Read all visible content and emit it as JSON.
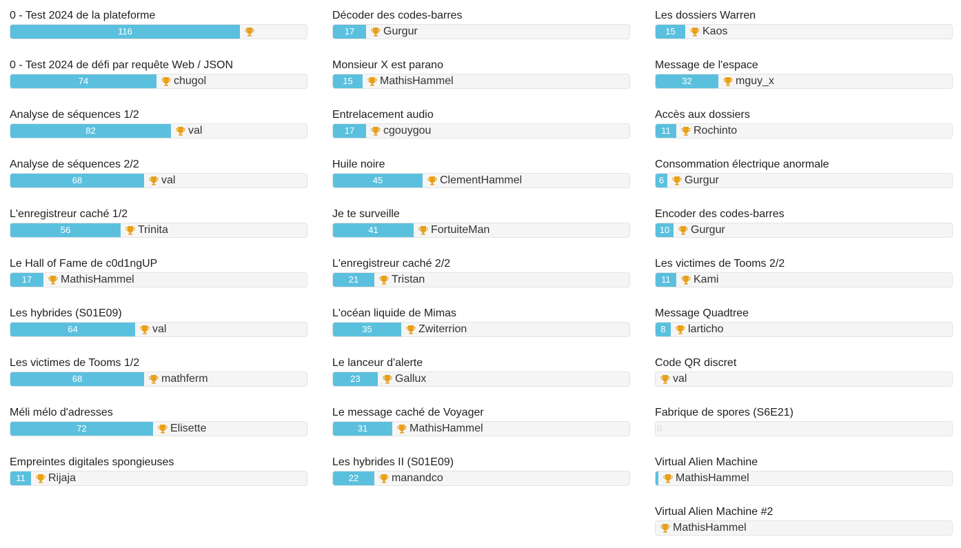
{
  "colors": {
    "bar_fill": "#5bc0de",
    "bar_track": "#f5f5f5",
    "trophy": "#e8a019"
  },
  "columns": [
    {
      "items": [
        {
          "title": "0 - Test 2024 de la plateforme",
          "count": "116",
          "winner": "",
          "level": 0.77
        },
        {
          "title": "0 - Test 2024 de défi par requête Web / JSON",
          "count": "74",
          "winner": "chugol",
          "level": 0.49
        },
        {
          "title": "Analyse de séquences 1/2",
          "count": "82",
          "winner": "val",
          "level": 0.54
        },
        {
          "title": "Analyse de séquences 2/2",
          "count": "68",
          "winner": "val",
          "level": 0.45
        },
        {
          "title": "L'enregistreur caché 1/2",
          "count": "56",
          "winner": "Trinita",
          "level": 0.37
        },
        {
          "title": "Le Hall of Fame de c0d1ngUP",
          "count": "17",
          "winner": "MathisHammel",
          "level": 0.11
        },
        {
          "title": "Les hybrides (S01E09)",
          "count": "64",
          "winner": "val",
          "level": 0.42
        },
        {
          "title": "Les victimes de Tooms 1/2",
          "count": "68",
          "winner": "mathferm",
          "level": 0.45
        },
        {
          "title": "Méli mélo d'adresses",
          "count": "72",
          "winner": "Elisette",
          "level": 0.48
        },
        {
          "title": "Empreintes digitales spongieuses",
          "count": "11",
          "winner": "Rijaja",
          "level": 0.07
        }
      ]
    },
    {
      "items": [
        {
          "title": "Décoder des codes-barres",
          "count": "17",
          "winner": "Gurgur",
          "level": 0.11
        },
        {
          "title": "Monsieur X est parano",
          "count": "15",
          "winner": "MathisHammel",
          "level": 0.1
        },
        {
          "title": "Entrelacement audio",
          "count": "17",
          "winner": "cgouygou",
          "level": 0.11
        },
        {
          "title": "Huile noire",
          "count": "45",
          "winner": "ClementHammel",
          "level": 0.3
        },
        {
          "title": "Je te surveille",
          "count": "41",
          "winner": "FortuiteMan",
          "level": 0.27
        },
        {
          "title": "L'enregistreur caché 2/2",
          "count": "21",
          "winner": "Tristan",
          "level": 0.14
        },
        {
          "title": "L'océan liquide de Mimas",
          "count": "35",
          "winner": "Zwiterrion",
          "level": 0.23
        },
        {
          "title": "Le lanceur d'alerte",
          "count": "23",
          "winner": "Gallux",
          "level": 0.15
        },
        {
          "title": "Le message caché de Voyager",
          "count": "31",
          "winner": "MathisHammel",
          "level": 0.2
        },
        {
          "title": "Les hybrides II (S01E09)",
          "count": "22",
          "winner": "manandco",
          "level": 0.14
        }
      ]
    },
    {
      "items": [
        {
          "title": "Les dossiers Warren",
          "count": "15",
          "winner": "Kaos",
          "level": 0.1
        },
        {
          "title": "Message de l'espace",
          "count": "32",
          "winner": "mguy_x",
          "level": 0.21
        },
        {
          "title": "Accès aux dossiers",
          "count": "11",
          "winner": "Rochinto",
          "level": 0.07
        },
        {
          "title": "Consommation électrique anormale",
          "count": "6",
          "winner": "Gurgur",
          "level": 0.04
        },
        {
          "title": "Encoder des codes-barres",
          "count": "10",
          "winner": "Gurgur",
          "level": 0.06
        },
        {
          "title": "Les victimes de Tooms 2/2",
          "count": "11",
          "winner": "Kami",
          "level": 0.07
        },
        {
          "title": "Message Quadtree",
          "count": "8",
          "winner": "larticho",
          "level": 0.05
        },
        {
          "title": "Code QR discret",
          "count": "",
          "winner": "val",
          "level": 0
        },
        {
          "title": "Fabrique de spores (S6E21)",
          "count": "0",
          "winner": "",
          "level": 0
        },
        {
          "title": "Virtual Alien Machine",
          "count": "",
          "winner": "MathisHammel",
          "level": 0.01
        },
        {
          "title": "Virtual Alien Machine #2",
          "count": "",
          "winner": "MathisHammel",
          "level": 0
        }
      ]
    }
  ]
}
